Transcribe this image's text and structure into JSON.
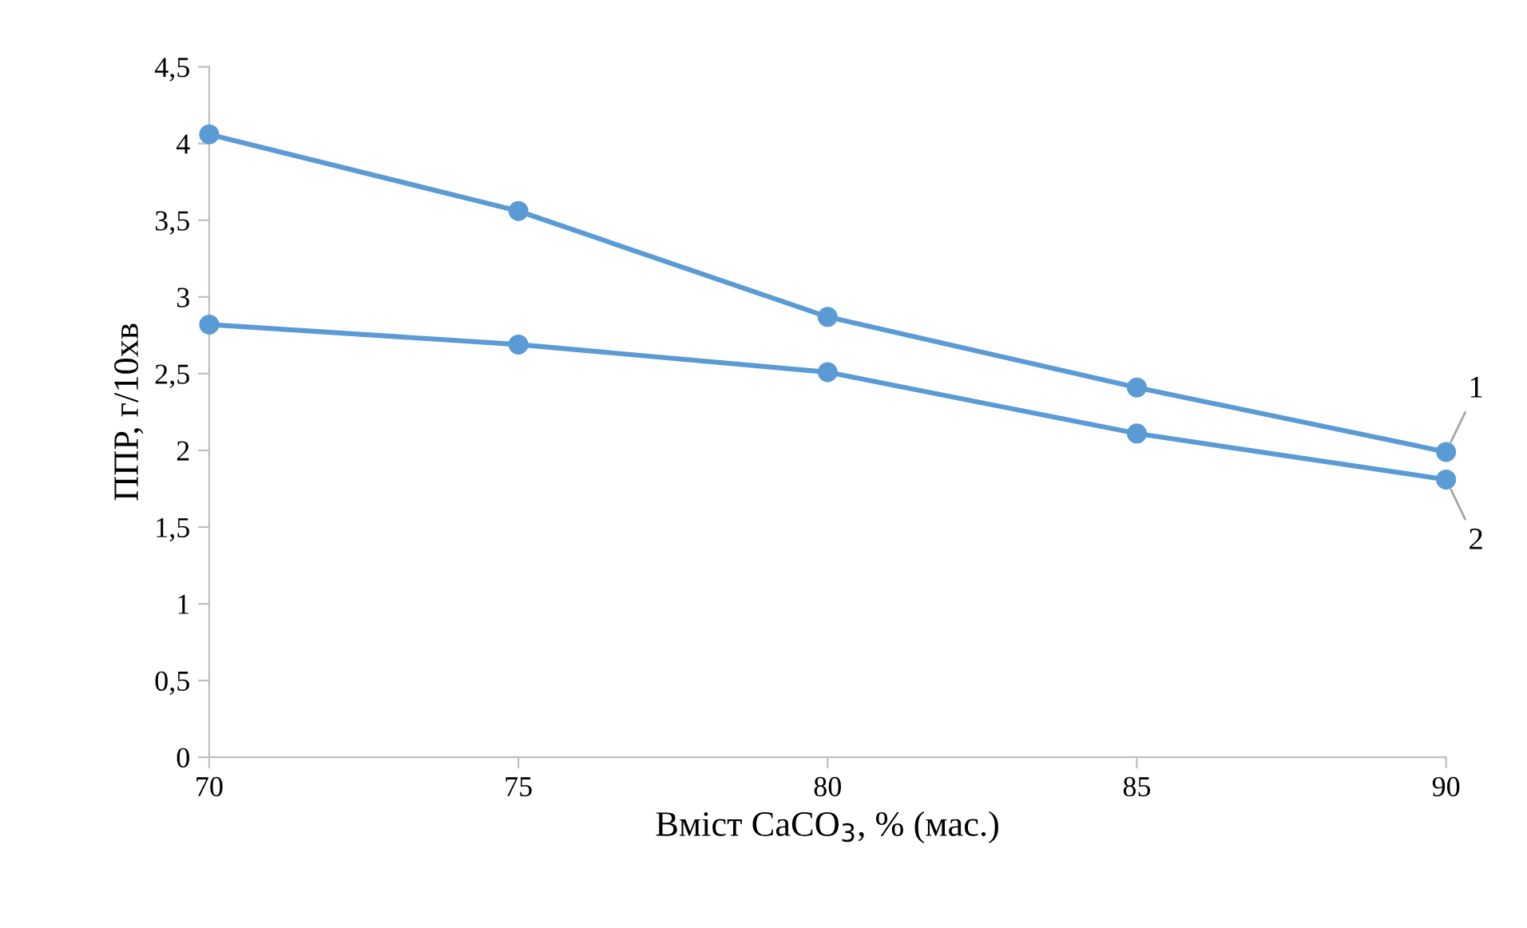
{
  "chart_data": {
    "type": "line",
    "xlabel": "Вміст CaCO$_{3}$, % (мас.)",
    "ylabel": "ППР, г/10хв",
    "x": [
      70,
      75,
      80,
      85,
      90
    ],
    "series": [
      {
        "name": "1",
        "color": "#5b9bd5",
        "values": [
          4.06,
          3.56,
          2.87,
          2.41,
          1.99
        ]
      },
      {
        "name": "2",
        "color": "#5b9bd5",
        "values": [
          2.82,
          2.69,
          2.51,
          2.11,
          1.81
        ]
      }
    ],
    "xlim": [
      70,
      90
    ],
    "xticks": [
      70,
      75,
      80,
      85,
      90
    ],
    "ylim": [
      0,
      4.5
    ],
    "yticks": [
      0,
      {
        "value": 0.5,
        "label": "0,5"
      },
      1,
      {
        "value": 1.5,
        "label": "1,5"
      },
      2,
      {
        "value": 2.5,
        "label": "2,5"
      },
      3,
      {
        "value": 3.5,
        "label": "3,5"
      },
      4,
      {
        "value": 4.5,
        "label": "4,5"
      }
    ],
    "grid": false,
    "legend": false,
    "marker": "circle",
    "line_style": "solid"
  }
}
